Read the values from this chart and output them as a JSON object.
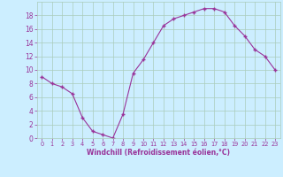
{
  "x": [
    0,
    1,
    2,
    3,
    4,
    5,
    6,
    7,
    8,
    9,
    10,
    11,
    12,
    13,
    14,
    15,
    16,
    17,
    18,
    19,
    20,
    21,
    22,
    23
  ],
  "y": [
    9,
    8,
    7.5,
    6.5,
    3,
    1,
    0.5,
    0,
    3.5,
    9.5,
    11.5,
    14,
    16.5,
    17.5,
    18,
    18.5,
    19,
    19,
    18.5,
    16.5,
    15,
    13,
    12,
    10
  ],
  "line_color": "#993399",
  "marker": "+",
  "marker_size": 3,
  "marker_edge_width": 1.0,
  "background_color": "#cceeff",
  "grid_color": "#aaccbb",
  "xlabel": "Windchill (Refroidissement éolien,°C)",
  "xlabel_color": "#993399",
  "tick_color": "#993399",
  "label_color": "#993399",
  "ylim": [
    0,
    20
  ],
  "xlim": [
    -0.5,
    23.5
  ],
  "yticks": [
    0,
    2,
    4,
    6,
    8,
    10,
    12,
    14,
    16,
    18
  ],
  "xticks": [
    0,
    1,
    2,
    3,
    4,
    5,
    6,
    7,
    8,
    9,
    10,
    11,
    12,
    13,
    14,
    15,
    16,
    17,
    18,
    19,
    20,
    21,
    22,
    23
  ],
  "xlabel_fontsize": 5.5,
  "xlabel_fontweight": "bold",
  "xtick_fontsize": 4.8,
  "ytick_fontsize": 5.5
}
